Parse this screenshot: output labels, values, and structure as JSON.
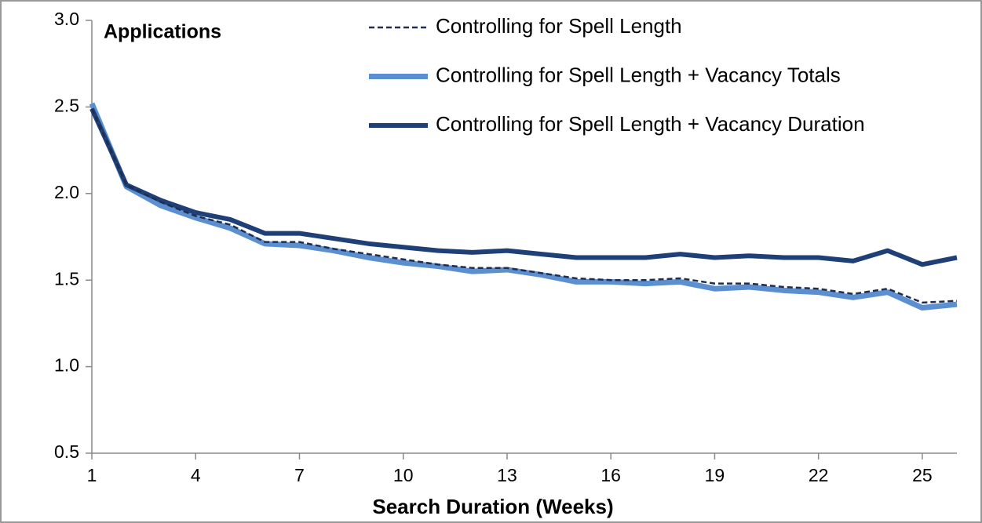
{
  "chart_data": {
    "type": "line",
    "annotation": "Applications",
    "x_label": "Search Duration (Weeks)",
    "x": [
      1,
      2,
      3,
      4,
      5,
      6,
      7,
      8,
      9,
      10,
      11,
      12,
      13,
      14,
      15,
      16,
      17,
      18,
      19,
      20,
      21,
      22,
      23,
      24,
      25,
      26
    ],
    "xlim": [
      1,
      26
    ],
    "xticks": [
      1,
      4,
      7,
      10,
      13,
      16,
      19,
      22,
      25
    ],
    "ylim": [
      0.5,
      3
    ],
    "yticks": [
      0.5,
      {
        "value": 1,
        "label": "1.0"
      },
      1.5,
      {
        "value": 2,
        "label": "2.0"
      },
      2.5,
      {
        "value": 3,
        "label": "3.0"
      }
    ],
    "legend": "top-right",
    "series": [
      {
        "name": "Controlling for Spell Length",
        "color": "#1f2d50",
        "dash": true,
        "width": 2.5,
        "values": [
          2.49,
          2.05,
          1.95,
          1.87,
          1.82,
          1.72,
          1.72,
          1.68,
          1.65,
          1.62,
          1.59,
          1.57,
          1.57,
          1.54,
          1.51,
          1.5,
          1.5,
          1.51,
          1.48,
          1.48,
          1.46,
          1.45,
          1.42,
          1.45,
          1.37,
          1.38
        ]
      },
      {
        "name": "Controlling for Spell Length + Vacancy Totals",
        "color": "#5b8fd0",
        "dash": false,
        "width": 7,
        "values": [
          2.52,
          2.04,
          1.93,
          1.86,
          1.8,
          1.71,
          1.7,
          1.67,
          1.63,
          1.6,
          1.58,
          1.55,
          1.56,
          1.53,
          1.49,
          1.49,
          1.48,
          1.49,
          1.45,
          1.46,
          1.44,
          1.43,
          1.4,
          1.43,
          1.34,
          1.36
        ]
      },
      {
        "name": "Controlling for Spell Length + Vacancy Duration",
        "color": "#1f3f77",
        "dash": false,
        "width": 6,
        "values": [
          2.49,
          2.05,
          1.96,
          1.89,
          1.85,
          1.77,
          1.77,
          1.74,
          1.71,
          1.69,
          1.67,
          1.66,
          1.67,
          1.65,
          1.63,
          1.63,
          1.63,
          1.65,
          1.63,
          1.64,
          1.63,
          1.63,
          1.61,
          1.67,
          1.59,
          1.63
        ]
      }
    ]
  }
}
